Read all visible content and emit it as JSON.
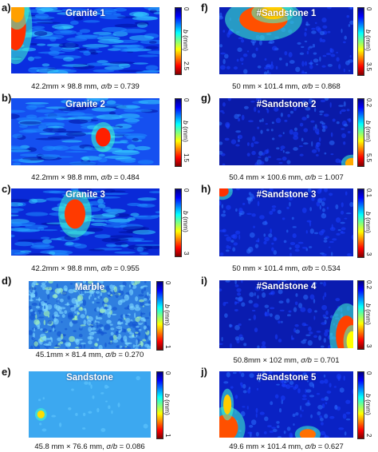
{
  "colorbar_label_symbol": "b",
  "colorbar_label_unit": " (mm)",
  "sigma_symbol": "σ/b",
  "colormap": [
    "#00007f",
    "#0000ff",
    "#007fff",
    "#00ffff",
    "#7fff7f",
    "#ffff00",
    "#ff7f00",
    "#ff0000",
    "#7f0000"
  ],
  "panels": [
    {
      "id": "a",
      "letter": "a)",
      "title": "Granite 1",
      "scale_max": "2.5",
      "scale_min": "0",
      "dims": "42.2mm × 98.8 mm, ",
      "sigma_value": " = 0.739",
      "dominant": "#0a2ee0",
      "texture": "streaky"
    },
    {
      "id": "b",
      "letter": "b)",
      "title": "Granite 2",
      "scale_max": "1.5",
      "scale_min": "0",
      "dims": "42.2mm × 98.8 mm, ",
      "sigma_value": " = 0.484",
      "dominant": "#1550f0",
      "texture": "streaky"
    },
    {
      "id": "c",
      "letter": "c)",
      "title": "Granite 3",
      "scale_max": "3",
      "scale_min": "0",
      "dims": "42.2mm × 98.8 mm, ",
      "sigma_value": " = 0.955",
      "dominant": "#0a2ad8",
      "texture": "streaky"
    },
    {
      "id": "d",
      "letter": "d)",
      "title": "Marble",
      "scale_max": "1",
      "scale_min": "0",
      "dims": "45.1mm × 81.4 mm, ",
      "sigma_value": " = 0.270",
      "dominant": "#2f7fe0",
      "texture": "grainy"
    },
    {
      "id": "e",
      "letter": "e)",
      "title": "Sandstone",
      "scale_max": "1",
      "scale_min": "0",
      "dims": "45.8 mm × 76.6 mm, ",
      "sigma_value": " = 0.086",
      "dominant": "#3ca8f0",
      "texture": "flat"
    },
    {
      "id": "f",
      "letter": "f)",
      "title": "#Sandstone 1",
      "scale_max": "3.5",
      "scale_min": "0",
      "dims": "50 mm × 101.4 mm, ",
      "sigma_value": " = 0.868",
      "dominant": "#0a1fb8",
      "texture": "speckle"
    },
    {
      "id": "g",
      "letter": "g)",
      "title": "#Sandstone 2",
      "scale_max": "5.5",
      "scale_min": "0.2",
      "dims": "50.4 mm × 100.6 mm, ",
      "sigma_value": " = 1.007",
      "dominant": "#0a1aa8",
      "texture": "speckle"
    },
    {
      "id": "h",
      "letter": "h)",
      "title": "#Sandstone 3",
      "scale_max": "3",
      "scale_min": "0.1",
      "dims": "50 mm × 101.4 mm, ",
      "sigma_value": " = 0.534",
      "dominant": "#0a22c0",
      "texture": "speckle"
    },
    {
      "id": "i",
      "letter": "i)",
      "title": "#Sandstone 4",
      "scale_max": "3",
      "scale_min": "0.2",
      "dims": "50.8mm × 102 mm, ",
      "sigma_value": " = 0.701",
      "dominant": "#0a1cb0",
      "texture": "speckle"
    },
    {
      "id": "j",
      "letter": "j)",
      "title": "#Sandstone 5",
      "scale_max": "2",
      "scale_min": "0",
      "dims": "49.6 mm × 101.4 mm, ",
      "sigma_value": " = 0.627",
      "dominant": "#0a22c4",
      "texture": "speckle"
    }
  ]
}
